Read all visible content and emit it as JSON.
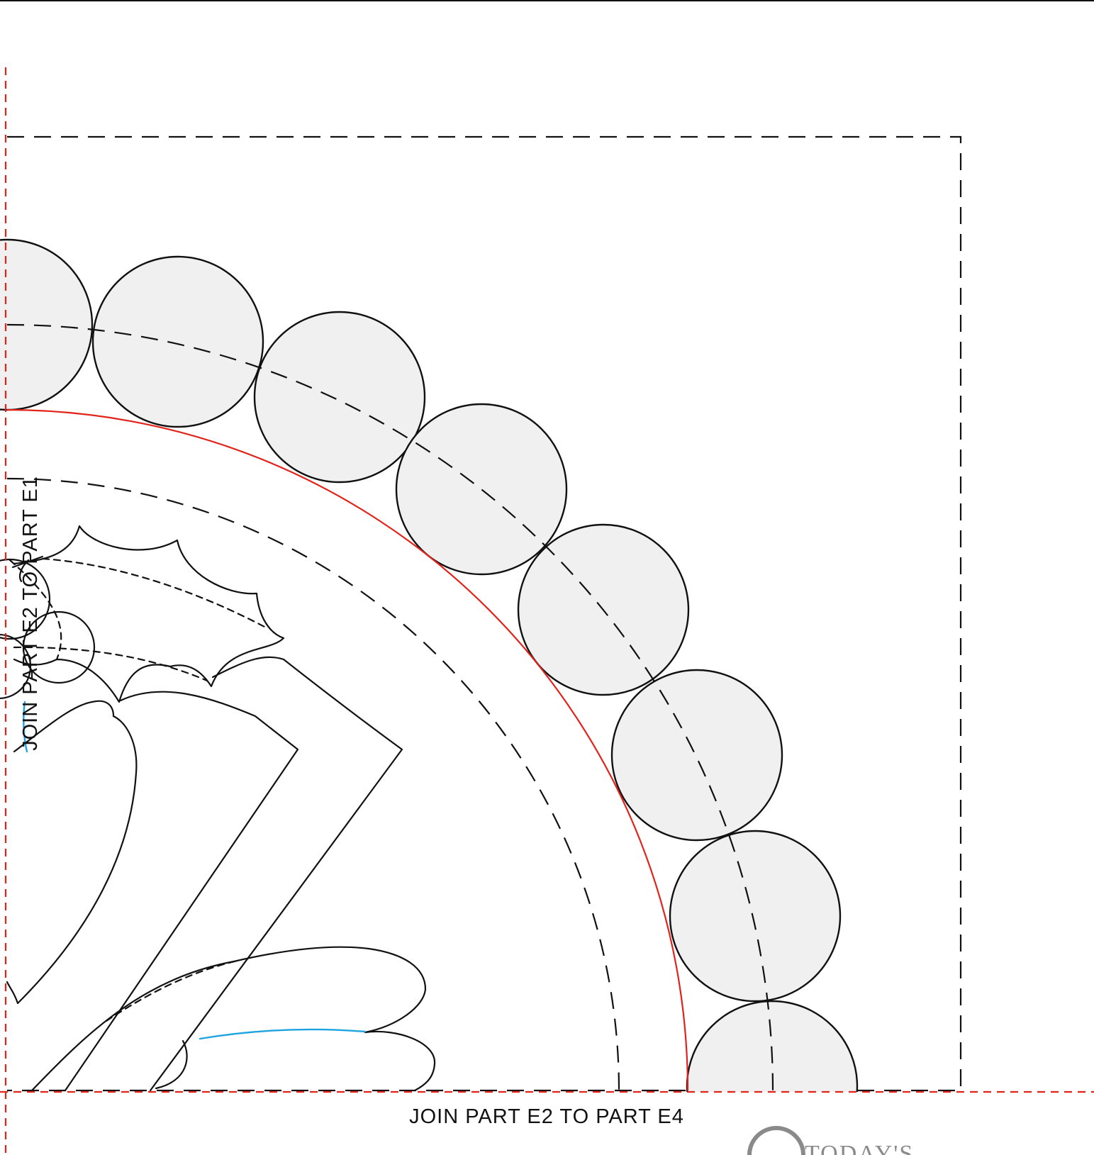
{
  "labels": {
    "join_bottom": "JOIN PART E2 TO PART E4",
    "join_left": "JOIN PART E2 TO PART E1"
  },
  "logo": {
    "text": "TODAY'S"
  },
  "colors": {
    "line": "#111111",
    "placement_line": "#e2231a",
    "detail_line": "#1ea3e0",
    "circle_fill": "#f0f0f0"
  }
}
